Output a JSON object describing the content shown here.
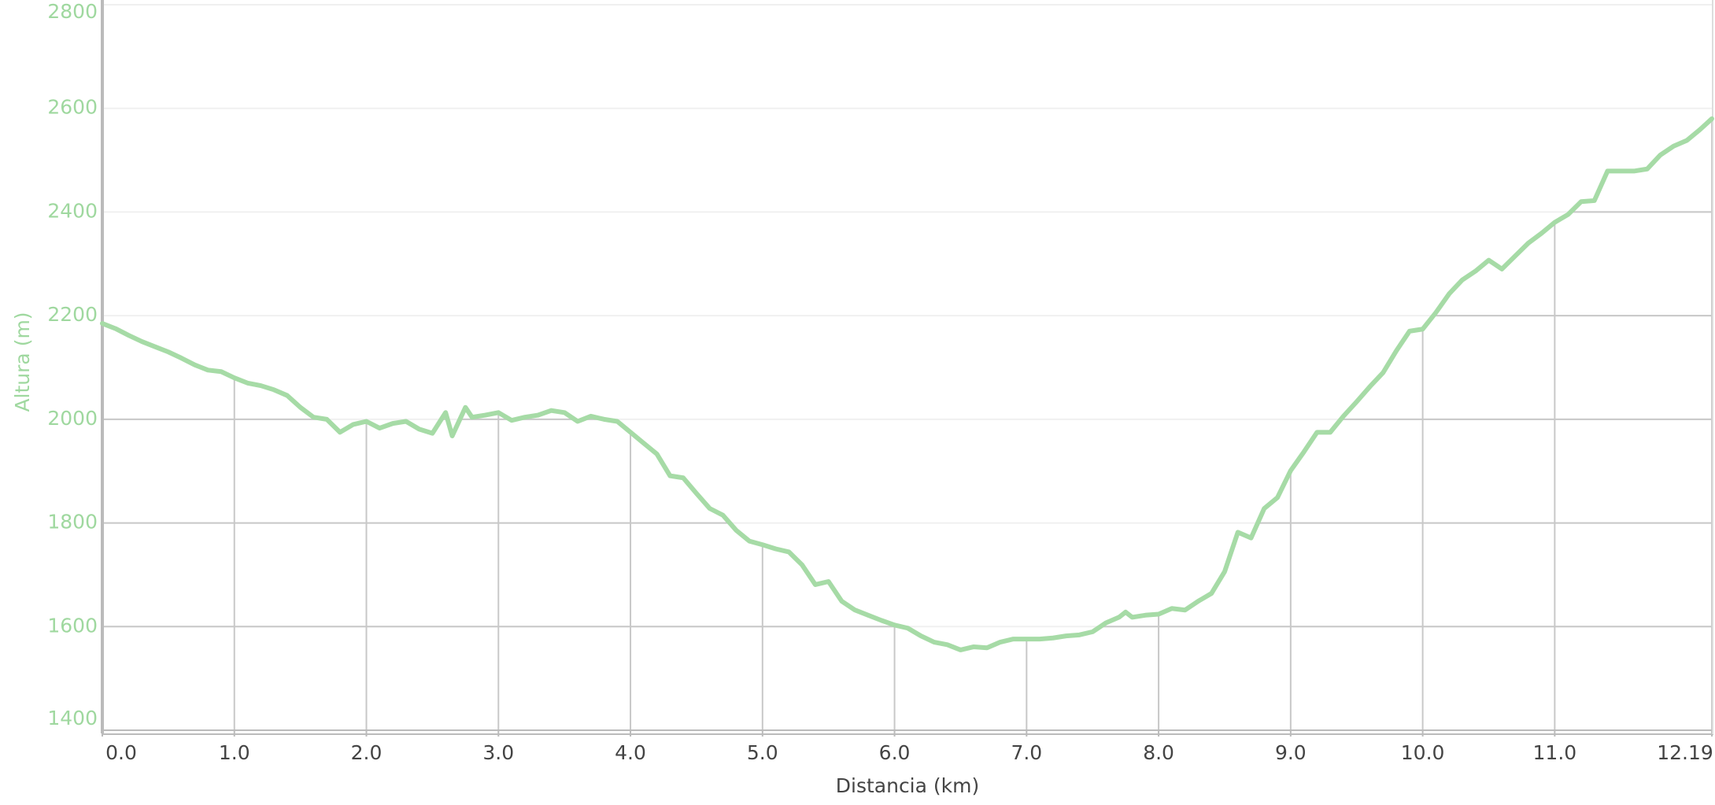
{
  "chart_data": {
    "type": "line",
    "x_label": "Distancia (km)",
    "y_label": "Altura (m)",
    "x": [
      0,
      0.1,
      0.2,
      0.3,
      0.4,
      0.5,
      0.6,
      0.7,
      0.8,
      0.9,
      1.0,
      1.1,
      1.2,
      1.3,
      1.4,
      1.5,
      1.6,
      1.7,
      1.8,
      1.9,
      2.0,
      2.1,
      2.2,
      2.3,
      2.4,
      2.5,
      2.6,
      2.65,
      2.75,
      2.8,
      2.9,
      3.0,
      3.1,
      3.2,
      3.3,
      3.4,
      3.5,
      3.6,
      3.7,
      3.8,
      3.9,
      4.0,
      4.1,
      4.2,
      4.3,
      4.4,
      4.5,
      4.6,
      4.7,
      4.8,
      4.9,
      5.0,
      5.1,
      5.2,
      5.3,
      5.4,
      5.5,
      5.6,
      5.7,
      5.8,
      5.9,
      6.0,
      6.1,
      6.2,
      6.3,
      6.4,
      6.5,
      6.6,
      6.7,
      6.8,
      6.9,
      7.0,
      7.1,
      7.2,
      7.3,
      7.4,
      7.5,
      7.6,
      7.7,
      7.75,
      7.8,
      7.9,
      8.0,
      8.1,
      8.2,
      8.3,
      8.4,
      8.5,
      8.6,
      8.7,
      8.8,
      8.9,
      9.0,
      9.1,
      9.2,
      9.3,
      9.4,
      9.5,
      9.6,
      9.7,
      9.8,
      9.9,
      10.0,
      10.1,
      10.2,
      10.3,
      10.4,
      10.5,
      10.6,
      10.7,
      10.8,
      10.9,
      11.0,
      11.1,
      11.2,
      11.3,
      11.4,
      11.5,
      11.6,
      11.7,
      11.8,
      11.9,
      12.0,
      12.1,
      12.19
    ],
    "values": [
      2185,
      2175,
      2162,
      2150,
      2140,
      2130,
      2118,
      2105,
      2095,
      2092,
      2080,
      2070,
      2065,
      2057,
      2046,
      2023,
      2004,
      2000,
      1975,
      1990,
      1996,
      1983,
      1992,
      1996,
      1981,
      1973,
      2013,
      1968,
      2023,
      2004,
      2008,
      2013,
      1998,
      2004,
      2008,
      2017,
      2013,
      1996,
      2006,
      2000,
      1996,
      1975,
      1954,
      1933,
      1891,
      1887,
      1857,
      1828,
      1815,
      1786,
      1765,
      1758,
      1750,
      1744,
      1719,
      1681,
      1687,
      1649,
      1632,
      1622,
      1612,
      1603,
      1597,
      1582,
      1570,
      1565,
      1555,
      1561,
      1559,
      1570,
      1576,
      1576,
      1576,
      1578,
      1582,
      1584,
      1590,
      1607,
      1618,
      1628,
      1618,
      1622,
      1624,
      1635,
      1632,
      1649,
      1664,
      1706,
      1782,
      1771,
      1828,
      1849,
      1901,
      1937,
      1975,
      1975,
      2006,
      2034,
      2063,
      2090,
      2132,
      2170,
      2174,
      2206,
      2242,
      2269,
      2286,
      2307,
      2290,
      2315,
      2340,
      2359,
      2380,
      2395,
      2420,
      2422,
      2479,
      2479,
      2479,
      2483,
      2510,
      2527,
      2538,
      2559,
      2580
    ],
    "color": "#a6dba6",
    "xlim": [
      0,
      12.19
    ],
    "xticks": [
      {
        "value": 0,
        "label": "0.0"
      },
      {
        "value": 1,
        "label": "1.0"
      },
      {
        "value": 2,
        "label": "2.0"
      },
      {
        "value": 3,
        "label": "3.0"
      },
      {
        "value": 4,
        "label": "4.0"
      },
      {
        "value": 5,
        "label": "5.0"
      },
      {
        "value": 6,
        "label": "6.0"
      },
      {
        "value": 7,
        "label": "7.0"
      },
      {
        "value": 8,
        "label": "8.0"
      },
      {
        "value": 9,
        "label": "9.0"
      },
      {
        "value": 10,
        "label": "10.0"
      },
      {
        "value": 11,
        "label": "11.0"
      },
      12.19
    ],
    "ylim": [
      1400,
      2800
    ],
    "yticks": [
      1400,
      1600,
      1800,
      2000,
      2200,
      2400,
      2600,
      2800
    ],
    "grid": true
  }
}
